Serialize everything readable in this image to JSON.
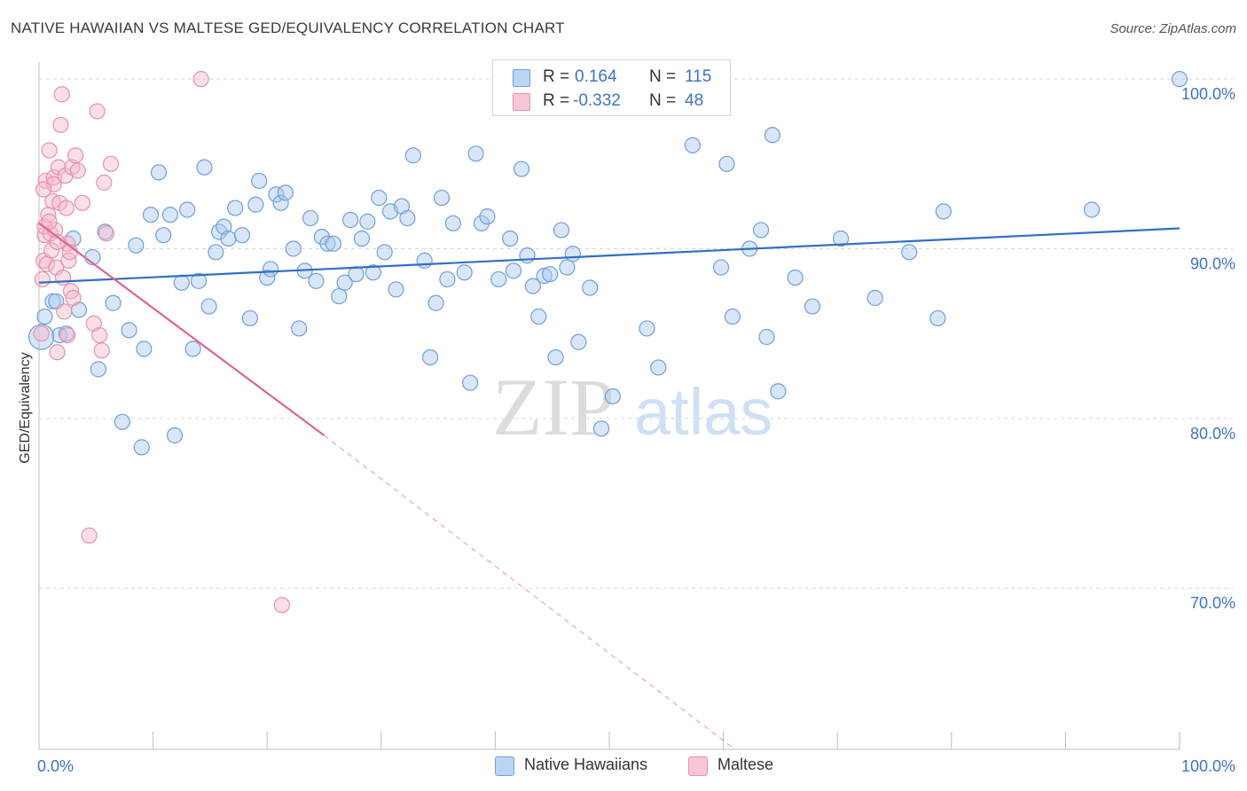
{
  "title": "NATIVE HAWAIIAN VS MALTESE GED/EQUIVALENCY CORRELATION CHART",
  "source": "Source: ZipAtlas.com",
  "watermark": {
    "zip": "ZIP",
    "atlas": "atlas"
  },
  "colors": {
    "blue_fill": "#a9c8f0",
    "blue_stroke": "#6f9fdc",
    "blue_line": "#2f6fc7",
    "pink_fill": "#f4b8ca",
    "pink_stroke": "#e890ab",
    "pink_line": "#e2628f",
    "axis_text": "#3a74c6",
    "grid": "#d6d6d6"
  },
  "legend": {
    "rows": [
      {
        "r_label": "R =",
        "r_value": "0.164",
        "n_label": "N =",
        "n_value": "115"
      },
      {
        "r_label": "R =",
        "r_value": "-0.332",
        "n_label": "N =",
        "n_value": "48"
      }
    ]
  },
  "bottom_legend": {
    "series1": "Native Hawaiians",
    "series2": "Maltese"
  },
  "chart_data": {
    "type": "scatter",
    "title": "NATIVE HAWAIIAN VS MALTESE GED/EQUIVALENCY CORRELATION CHART",
    "xlabel": "",
    "ylabel": "GED/Equivalency",
    "xlim": [
      0,
      100
    ],
    "ylim": [
      60.5,
      101
    ],
    "x_tick_labels": [
      "0.0%",
      "100.0%"
    ],
    "y_ticks": [
      70,
      80,
      90,
      100
    ],
    "y_tick_labels": [
      "70.0%",
      "80.0%",
      "90.0%",
      "100.0%"
    ],
    "grid": true,
    "legend_position": "top-center",
    "series": [
      {
        "name": "Native Hawaiians",
        "R": 0.164,
        "N": 115,
        "trend": {
          "x": [
            0,
            100
          ],
          "y": [
            88.0,
            91.2
          ]
        },
        "points": [
          [
            0.5,
            86.0
          ],
          [
            1.2,
            86.9
          ],
          [
            1.5,
            86.9
          ],
          [
            1.8,
            84.9
          ],
          [
            2.4,
            85.0
          ],
          [
            3.0,
            90.6
          ],
          [
            3.5,
            86.4
          ],
          [
            4.7,
            89.5
          ],
          [
            5.2,
            82.9
          ],
          [
            5.8,
            91.0
          ],
          [
            6.5,
            86.8
          ],
          [
            7.3,
            79.8
          ],
          [
            7.9,
            85.2
          ],
          [
            8.5,
            90.2
          ],
          [
            9.0,
            78.3
          ],
          [
            9.2,
            84.1
          ],
          [
            9.8,
            92.0
          ],
          [
            10.5,
            94.5
          ],
          [
            10.9,
            90.8
          ],
          [
            11.5,
            92.0
          ],
          [
            11.9,
            79.0
          ],
          [
            12.5,
            88.0
          ],
          [
            13.0,
            92.3
          ],
          [
            13.5,
            84.1
          ],
          [
            14.0,
            88.1
          ],
          [
            14.5,
            94.8
          ],
          [
            14.9,
            86.6
          ],
          [
            15.5,
            89.8
          ],
          [
            15.8,
            91.0
          ],
          [
            16.2,
            91.3
          ],
          [
            16.6,
            90.6
          ],
          [
            17.2,
            92.4
          ],
          [
            17.8,
            90.8
          ],
          [
            18.5,
            85.9
          ],
          [
            19.0,
            92.6
          ],
          [
            19.3,
            94.0
          ],
          [
            20.0,
            88.3
          ],
          [
            20.3,
            88.8
          ],
          [
            20.8,
            93.2
          ],
          [
            21.2,
            92.7
          ],
          [
            21.6,
            93.3
          ],
          [
            22.3,
            90.0
          ],
          [
            22.8,
            85.3
          ],
          [
            23.3,
            88.7
          ],
          [
            23.8,
            91.8
          ],
          [
            24.3,
            88.1
          ],
          [
            24.8,
            90.7
          ],
          [
            25.3,
            90.3
          ],
          [
            25.8,
            90.3
          ],
          [
            26.3,
            87.2
          ],
          [
            26.8,
            88.0
          ],
          [
            27.3,
            91.7
          ],
          [
            27.8,
            88.5
          ],
          [
            28.3,
            90.6
          ],
          [
            28.8,
            91.6
          ],
          [
            29.3,
            88.6
          ],
          [
            29.8,
            93.0
          ],
          [
            30.3,
            89.8
          ],
          [
            30.8,
            92.2
          ],
          [
            31.3,
            87.6
          ],
          [
            31.8,
            92.5
          ],
          [
            32.3,
            91.8
          ],
          [
            32.8,
            95.5
          ],
          [
            33.8,
            89.3
          ],
          [
            34.3,
            83.6
          ],
          [
            34.8,
            86.8
          ],
          [
            35.3,
            93.0
          ],
          [
            35.8,
            88.2
          ],
          [
            36.3,
            91.5
          ],
          [
            37.3,
            88.6
          ],
          [
            37.8,
            82.1
          ],
          [
            38.3,
            95.6
          ],
          [
            38.8,
            91.5
          ],
          [
            39.3,
            91.9
          ],
          [
            40.3,
            88.2
          ],
          [
            41.3,
            90.6
          ],
          [
            41.6,
            88.7
          ],
          [
            42.3,
            94.7
          ],
          [
            42.8,
            89.6
          ],
          [
            43.3,
            87.8
          ],
          [
            43.8,
            86.0
          ],
          [
            44.3,
            88.4
          ],
          [
            44.8,
            88.5
          ],
          [
            45.3,
            83.6
          ],
          [
            45.8,
            91.1
          ],
          [
            46.3,
            88.9
          ],
          [
            46.8,
            89.7
          ],
          [
            47.3,
            84.5
          ],
          [
            48.3,
            87.7
          ],
          [
            49.3,
            79.4
          ],
          [
            50.3,
            81.3
          ],
          [
            53.3,
            85.3
          ],
          [
            54.3,
            83.0
          ],
          [
            57.3,
            96.1
          ],
          [
            59.3,
            100.0
          ],
          [
            59.8,
            88.9
          ],
          [
            60.3,
            95.0
          ],
          [
            60.8,
            86.0
          ],
          [
            62.3,
            90.0
          ],
          [
            63.3,
            91.1
          ],
          [
            63.8,
            84.8
          ],
          [
            64.3,
            96.7
          ],
          [
            64.8,
            81.6
          ],
          [
            66.3,
            88.3
          ],
          [
            67.8,
            86.6
          ],
          [
            70.3,
            90.6
          ],
          [
            73.3,
            87.1
          ],
          [
            76.3,
            89.8
          ],
          [
            78.8,
            85.9
          ],
          [
            79.3,
            92.2
          ],
          [
            92.3,
            92.3
          ],
          [
            100.0,
            100.0
          ]
        ]
      },
      {
        "name": "Maltese",
        "R": -0.332,
        "N": 48,
        "trend": {
          "x": [
            0,
            25.0
          ],
          "y": [
            91.5,
            79.0
          ]
        },
        "trend_dashed": {
          "x": [
            25.0,
            61.0
          ],
          "y": [
            79.0,
            60.5
          ]
        },
        "points": [
          [
            0.2,
            85.0
          ],
          [
            0.3,
            88.2
          ],
          [
            0.4,
            89.3
          ],
          [
            0.5,
            90.8
          ],
          [
            0.5,
            91.3
          ],
          [
            0.6,
            94.0
          ],
          [
            0.7,
            89.1
          ],
          [
            0.8,
            92.0
          ],
          [
            0.9,
            95.8
          ],
          [
            1.0,
            90.9
          ],
          [
            1.1,
            89.9
          ],
          [
            1.2,
            92.8
          ],
          [
            1.3,
            94.2
          ],
          [
            1.4,
            91.1
          ],
          [
            1.5,
            88.9
          ],
          [
            1.6,
            83.9
          ],
          [
            1.7,
            94.8
          ],
          [
            1.8,
            92.7
          ],
          [
            1.9,
            97.3
          ],
          [
            2.0,
            99.1
          ],
          [
            2.1,
            88.3
          ],
          [
            2.2,
            86.3
          ],
          [
            2.3,
            94.3
          ],
          [
            2.4,
            92.4
          ],
          [
            2.5,
            90.3
          ],
          [
            2.6,
            89.3
          ],
          [
            2.7,
            89.8
          ],
          [
            2.8,
            87.5
          ],
          [
            2.9,
            94.8
          ],
          [
            3.0,
            87.1
          ],
          [
            3.2,
            95.5
          ],
          [
            3.4,
            94.6
          ],
          [
            3.8,
            92.7
          ],
          [
            4.4,
            73.1
          ],
          [
            4.8,
            85.6
          ],
          [
            5.1,
            98.1
          ],
          [
            5.3,
            84.9
          ],
          [
            5.5,
            84.0
          ],
          [
            5.7,
            93.9
          ],
          [
            5.9,
            90.9
          ],
          [
            6.3,
            95.0
          ],
          [
            14.2,
            100.0
          ],
          [
            21.3,
            69.0
          ],
          [
            1.3,
            93.8
          ],
          [
            0.9,
            91.6
          ],
          [
            1.6,
            90.4
          ],
          [
            2.5,
            84.9
          ],
          [
            0.4,
            93.5
          ]
        ]
      }
    ]
  }
}
